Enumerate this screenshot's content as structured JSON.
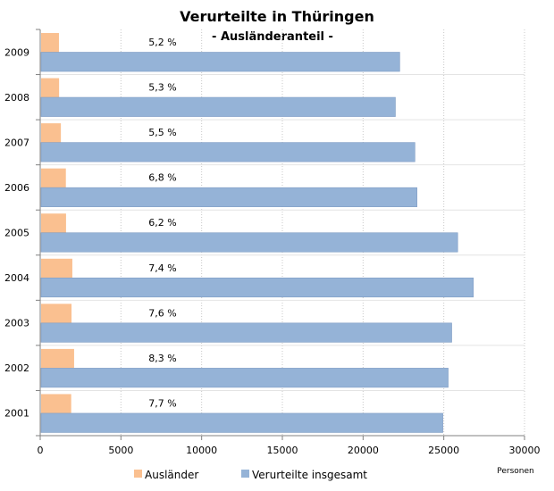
{
  "chart_data": {
    "type": "bar",
    "orientation": "horizontal",
    "title": "Verurteilte in Thüringen",
    "subtitle": "- Ausländeranteil -",
    "xlabel": "Personen",
    "ylabel": "",
    "xlim": [
      0,
      30000
    ],
    "xticks": [
      "0",
      "5000",
      "10000",
      "15000",
      "20000",
      "25000",
      "30000"
    ],
    "xtick_values": [
      0,
      5000,
      10000,
      15000,
      20000,
      25000,
      30000
    ],
    "grid": "vertical dotted",
    "legend_position": "bottom",
    "categories": [
      "2009",
      "2008",
      "2007",
      "2006",
      "2005",
      "2004",
      "2003",
      "2002",
      "2001"
    ],
    "series": [
      {
        "name": "Ausländer",
        "color": "#FAC090",
        "values": [
          1160,
          1170,
          1280,
          1590,
          1600,
          1990,
          1940,
          2100,
          1920
        ]
      },
      {
        "name": "Verurteilte insgesamt",
        "color": "#95B3D7",
        "values": [
          22270,
          22000,
          23210,
          23340,
          25860,
          26830,
          25490,
          25270,
          24940
        ]
      }
    ],
    "annotations": [
      "5,2 %",
      "5,3 %",
      "5,5 %",
      "6,8 %",
      "6,2 %",
      "7,4 %",
      "7,6 %",
      "8,3 %",
      "7,7 %"
    ]
  }
}
